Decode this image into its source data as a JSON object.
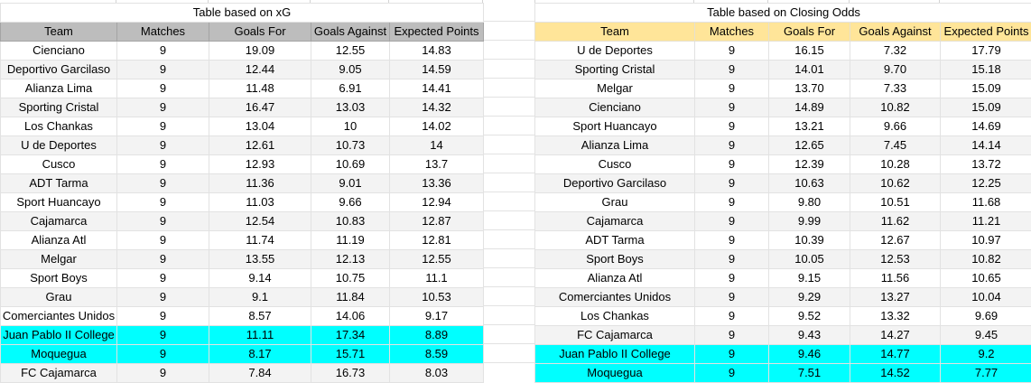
{
  "colors": {
    "gray_header": "#bdbdbd",
    "yellow_header": "#ffe599",
    "cyan_highlight": "#00ffff",
    "alt_row": "#f3f3f3",
    "gridline": "#e2e2e2"
  },
  "tables": [
    {
      "title": "Table based on xG",
      "columns": [
        "Team",
        "Matches",
        "Goals For",
        "Goals Against",
        "Expected Points"
      ],
      "rows": [
        {
          "cells": [
            "Cienciano",
            "9",
            "19.09",
            "12.55",
            "14.83"
          ],
          "highlight": false
        },
        {
          "cells": [
            "Deportivo Garcilaso",
            "9",
            "12.44",
            "9.05",
            "14.59"
          ],
          "highlight": false
        },
        {
          "cells": [
            "Alianza Lima",
            "9",
            "11.48",
            "6.91",
            "14.41"
          ],
          "highlight": false
        },
        {
          "cells": [
            "Sporting Cristal",
            "9",
            "16.47",
            "13.03",
            "14.32"
          ],
          "highlight": false
        },
        {
          "cells": [
            "Los Chankas",
            "9",
            "13.04",
            "10",
            "14.02"
          ],
          "highlight": false
        },
        {
          "cells": [
            "U de Deportes",
            "9",
            "12.61",
            "10.73",
            "14"
          ],
          "highlight": false
        },
        {
          "cells": [
            "Cusco",
            "9",
            "12.93",
            "10.69",
            "13.7"
          ],
          "highlight": false
        },
        {
          "cells": [
            "ADT Tarma",
            "9",
            "11.36",
            "9.01",
            "13.36"
          ],
          "highlight": false
        },
        {
          "cells": [
            "Sport Huancayo",
            "9",
            "11.03",
            "9.66",
            "12.94"
          ],
          "highlight": false
        },
        {
          "cells": [
            "Cajamarca",
            "9",
            "12.54",
            "10.83",
            "12.87"
          ],
          "highlight": false
        },
        {
          "cells": [
            "Alianza Atl",
            "9",
            "11.74",
            "11.19",
            "12.81"
          ],
          "highlight": false
        },
        {
          "cells": [
            "Melgar",
            "9",
            "13.55",
            "12.13",
            "12.55"
          ],
          "highlight": false
        },
        {
          "cells": [
            "Sport Boys",
            "9",
            "9.14",
            "10.75",
            "11.1"
          ],
          "highlight": false
        },
        {
          "cells": [
            "Grau",
            "9",
            "9.1",
            "11.84",
            "10.53"
          ],
          "highlight": false
        },
        {
          "cells": [
            "Comerciantes Unidos",
            "9",
            "8.57",
            "14.06",
            "9.17"
          ],
          "highlight": false
        },
        {
          "cells": [
            "Juan Pablo II College",
            "9",
            "11.11",
            "17.34",
            "8.89"
          ],
          "highlight": true
        },
        {
          "cells": [
            "Moquegua",
            "9",
            "8.17",
            "15.71",
            "8.59"
          ],
          "highlight": true
        },
        {
          "cells": [
            "FC Cajamarca",
            "9",
            "7.84",
            "16.73",
            "8.03"
          ],
          "highlight": false
        }
      ]
    },
    {
      "title": "Table based on Closing Odds",
      "columns": [
        "Team",
        "Matches",
        "Goals For",
        "Goals Against",
        "Expected Points"
      ],
      "rows": [
        {
          "cells": [
            "U de Deportes",
            "9",
            "16.15",
            "7.32",
            "17.79"
          ],
          "highlight": false
        },
        {
          "cells": [
            "Sporting Cristal",
            "9",
            "14.01",
            "9.70",
            "15.18"
          ],
          "highlight": false
        },
        {
          "cells": [
            "Melgar",
            "9",
            "13.70",
            "7.33",
            "15.09"
          ],
          "highlight": false
        },
        {
          "cells": [
            "Cienciano",
            "9",
            "14.89",
            "10.82",
            "15.09"
          ],
          "highlight": false
        },
        {
          "cells": [
            "Sport Huancayo",
            "9",
            "13.21",
            "9.66",
            "14.69"
          ],
          "highlight": false
        },
        {
          "cells": [
            "Alianza Lima",
            "9",
            "12.65",
            "7.45",
            "14.14"
          ],
          "highlight": false
        },
        {
          "cells": [
            "Cusco",
            "9",
            "12.39",
            "10.28",
            "13.72"
          ],
          "highlight": false
        },
        {
          "cells": [
            "Deportivo Garcilaso",
            "9",
            "10.63",
            "10.62",
            "12.25"
          ],
          "highlight": false
        },
        {
          "cells": [
            "Grau",
            "9",
            "9.80",
            "10.51",
            "11.68"
          ],
          "highlight": false
        },
        {
          "cells": [
            "Cajamarca",
            "9",
            "9.99",
            "11.62",
            "11.21"
          ],
          "highlight": false
        },
        {
          "cells": [
            "ADT Tarma",
            "9",
            "10.39",
            "12.67",
            "10.97"
          ],
          "highlight": false
        },
        {
          "cells": [
            "Sport Boys",
            "9",
            "10.05",
            "12.53",
            "10.82"
          ],
          "highlight": false
        },
        {
          "cells": [
            "Alianza Atl",
            "9",
            "9.15",
            "11.56",
            "10.65"
          ],
          "highlight": false
        },
        {
          "cells": [
            "Comerciantes Unidos",
            "9",
            "9.29",
            "13.27",
            "10.04"
          ],
          "highlight": false
        },
        {
          "cells": [
            "Los Chankas",
            "9",
            "9.52",
            "13.32",
            "9.69"
          ],
          "highlight": false
        },
        {
          "cells": [
            "FC Cajamarca",
            "9",
            "9.43",
            "14.27",
            "9.45"
          ],
          "highlight": false
        },
        {
          "cells": [
            "Juan Pablo II College",
            "9",
            "9.46",
            "14.77",
            "9.2"
          ],
          "highlight": true
        },
        {
          "cells": [
            "Moquegua",
            "9",
            "7.51",
            "14.52",
            "7.77"
          ],
          "highlight": true
        }
      ]
    }
  ]
}
